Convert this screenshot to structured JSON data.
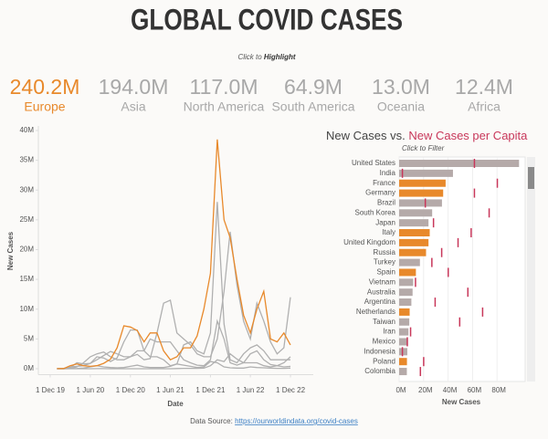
{
  "header": {
    "title": "GLOBAL COVID CASES",
    "hint_prefix": "Click to",
    "hint_bold": "Highlight"
  },
  "kpis": [
    {
      "value": "240.2M",
      "label": "Europe",
      "color": "#e8892b"
    },
    {
      "value": "194.0M",
      "label": "Asia",
      "color": "#a8a8a8"
    },
    {
      "value": "117.0M",
      "label": "North America",
      "color": "#a8a8a8"
    },
    {
      "value": "64.9M",
      "label": "South America",
      "color": "#a8a8a8"
    },
    {
      "value": "13.0M",
      "label": "Oceania",
      "color": "#a8a8a8"
    },
    {
      "value": "12.4M",
      "label": "Africa",
      "color": "#a8a8a8"
    }
  ],
  "footer": {
    "text": "Data Source:",
    "link": "https://ourworldindata.org/covid-cases"
  },
  "chart_data": [
    {
      "type": "line",
      "y_label": "New Cases",
      "x_label": "Date",
      "x": [
        "2020-01-01",
        "2020-02-01",
        "2020-03-01",
        "2020-04-01",
        "2020-05-01",
        "2020-06-01",
        "2020-07-01",
        "2020-08-01",
        "2020-09-01",
        "2020-10-01",
        "2020-11-01",
        "2020-12-01",
        "2021-01-01",
        "2021-02-01",
        "2021-03-01",
        "2021-04-01",
        "2021-05-01",
        "2021-06-01",
        "2021-07-01",
        "2021-08-01",
        "2021-09-01",
        "2021-10-01",
        "2021-11-01",
        "2021-12-01",
        "2022-01-01",
        "2022-02-01",
        "2022-03-01",
        "2022-04-01",
        "2022-05-01",
        "2022-06-01",
        "2022-07-01",
        "2022-08-01",
        "2022-09-01",
        "2022-10-01",
        "2022-11-01",
        "2022-12-01"
      ],
      "xlim": [
        "2019-10-08",
        "2023-03-15"
      ],
      "xticks": [
        {
          "value": "2019-12-01",
          "label": "1 Dec 19"
        },
        {
          "value": "2020-06-01",
          "label": "1 Jun 20"
        },
        {
          "value": "2020-12-01",
          "label": "1 Dec 20"
        },
        {
          "value": "2021-06-01",
          "label": "1 Jun 21"
        },
        {
          "value": "2021-12-01",
          "label": "1 Dec 21"
        },
        {
          "value": "2022-06-01",
          "label": "1 Jun 22"
        },
        {
          "value": "2022-12-01",
          "label": "1 Dec 22"
        }
      ],
      "ylim": [
        -1,
        40
      ],
      "yticks": [
        {
          "value": 0,
          "label": "0M"
        },
        {
          "value": 5,
          "label": "5M"
        },
        {
          "value": 10,
          "label": "10M"
        },
        {
          "value": 15,
          "label": "15M"
        },
        {
          "value": 20,
          "label": "20M"
        },
        {
          "value": 25,
          "label": "25M"
        },
        {
          "value": 30,
          "label": "30M"
        },
        {
          "value": 35,
          "label": "35M"
        },
        {
          "value": 40,
          "label": "40M"
        }
      ],
      "grid": false,
      "series": [
        {
          "name": "Europe",
          "color": "#e8892b",
          "values": [
            0.01,
            0.02,
            0.5,
            0.8,
            0.5,
            0.4,
            0.5,
            0.9,
            1.6,
            3.5,
            7.2,
            7,
            6.4,
            4.5,
            6,
            6,
            3,
            1.5,
            2,
            3.5,
            3.5,
            5.5,
            10,
            16,
            38.5,
            25,
            22,
            15,
            9,
            6,
            10,
            13,
            5,
            4.5,
            6,
            4
          ]
        },
        {
          "name": "Asia",
          "color": "#b0b0b0",
          "values": [
            0.01,
            0.05,
            0.3,
            0.4,
            0.5,
            0.9,
            1.5,
            2.2,
            2.9,
            2.5,
            2,
            2,
            2.4,
            1.5,
            1.7,
            6,
            11,
            11.5,
            6,
            5,
            4,
            2.5,
            2,
            2,
            5,
            13,
            23,
            14,
            8,
            5,
            11,
            8,
            4.5,
            2.5,
            3.5,
            12
          ]
        },
        {
          "name": "North America",
          "color": "#b0b0b0",
          "values": [
            0,
            0,
            0.2,
            1,
            0.8,
            0.9,
            2,
            1.8,
            1.2,
            1.8,
            4.5,
            6.5,
            6.5,
            3,
            2,
            2,
            1.5,
            0.5,
            0.8,
            4,
            4.5,
            3,
            2.5,
            6,
            28,
            7.5,
            1.5,
            1,
            2.5,
            3.5,
            4,
            3,
            1.5,
            1.5,
            1.5,
            1.5
          ]
        },
        {
          "name": "South America",
          "color": "#b0b0b0",
          "values": [
            0,
            0,
            0.05,
            0.3,
            1,
            2,
            2.5,
            2.8,
            2,
            1.5,
            1.5,
            2,
            3,
            3,
            5,
            4.5,
            4.5,
            4.5,
            3,
            1.5,
            1,
            0.6,
            0.5,
            1.5,
            8,
            5,
            1,
            0.6,
            1,
            2.5,
            3,
            1.5,
            0.7,
            0.5,
            1,
            2
          ]
        },
        {
          "name": "Oceania",
          "color": "#b0b0b0",
          "values": [
            0,
            0,
            0.005,
            0.001,
            0,
            0,
            0.01,
            0.01,
            0,
            0,
            0,
            0,
            0,
            0,
            0,
            0,
            0,
            0,
            0.02,
            0.05,
            0.05,
            0.05,
            0.1,
            0.5,
            1.5,
            1.2,
            2.5,
            1.6,
            1,
            1,
            1,
            0.5,
            0.3,
            0.5,
            0.3,
            0.4
          ]
        },
        {
          "name": "Africa",
          "color": "#b0b0b0",
          "values": [
            0,
            0,
            0.01,
            0.03,
            0.1,
            0.3,
            0.5,
            0.3,
            0.2,
            0.15,
            0.2,
            0.4,
            0.6,
            0.3,
            0.2,
            0.2,
            0.2,
            0.4,
            0.8,
            0.6,
            0.4,
            0.2,
            0.3,
            1.2,
            1,
            0.3,
            0.15,
            0.1,
            0.1,
            0.3,
            0.2,
            0.15,
            0.1,
            0.05,
            0.05,
            0.1
          ]
        }
      ]
    },
    {
      "type": "hbar",
      "title": "New Cases vs.",
      "subtitle": "Click to Filter",
      "categories": [
        "United States",
        "India",
        "France",
        "Germany",
        "Brazil",
        "South Korea",
        "Japan",
        "Italy",
        "United Kingdom",
        "Russia",
        "Turkey",
        "Spain",
        "Vietnam",
        "Australia",
        "Argentina",
        "Netherlands",
        "Taiwan",
        "Iran",
        "Mexico",
        "Indonesia",
        "Poland",
        "Colombia"
      ],
      "colors": [
        "#b5aaa9",
        "#b5aaa9",
        "#e8892b",
        "#e8892b",
        "#b5aaa9",
        "#b5aaa9",
        "#b5aaa9",
        "#e8892b",
        "#e8892b",
        "#e8892b",
        "#b5aaa9",
        "#e8892b",
        "#b5aaa9",
        "#b5aaa9",
        "#b5aaa9",
        "#e8892b",
        "#b5aaa9",
        "#b5aaa9",
        "#b5aaa9",
        "#b5aaa9",
        "#e8892b",
        "#b5aaa9"
      ],
      "xlim": [
        0,
        103
      ],
      "xticks": [
        {
          "value": 0,
          "label": "0M"
        },
        {
          "value": 20,
          "label": "20M"
        },
        {
          "value": 40,
          "label": "40M"
        },
        {
          "value": 60,
          "label": "60M"
        },
        {
          "value": 80,
          "label": "80M"
        }
      ],
      "x2lim": [
        0,
        0.77
      ],
      "series": [
        {
          "name": "New Cases",
          "values": [
            98,
            44,
            38,
            36,
            35,
            27,
            24,
            25,
            24,
            22,
            17,
            13.7,
            11.5,
            11,
            10,
            8.6,
            8.3,
            7.6,
            7.2,
            6.7,
            6.4,
            6.3
          ]
        },
        {
          "name": "New Cases per Capita",
          "axis": "x2",
          "color": "#c8375a",
          "values": [
            0.46,
            0.02,
            0.6,
            0.46,
            0.16,
            0.55,
            0.21,
            0.44,
            0.36,
            0.26,
            0.2,
            0.3,
            0.1,
            0.42,
            0.22,
            0.51,
            0.37,
            0.07,
            0.05,
            0.02,
            0.15,
            0.13
          ]
        }
      ]
    }
  ]
}
